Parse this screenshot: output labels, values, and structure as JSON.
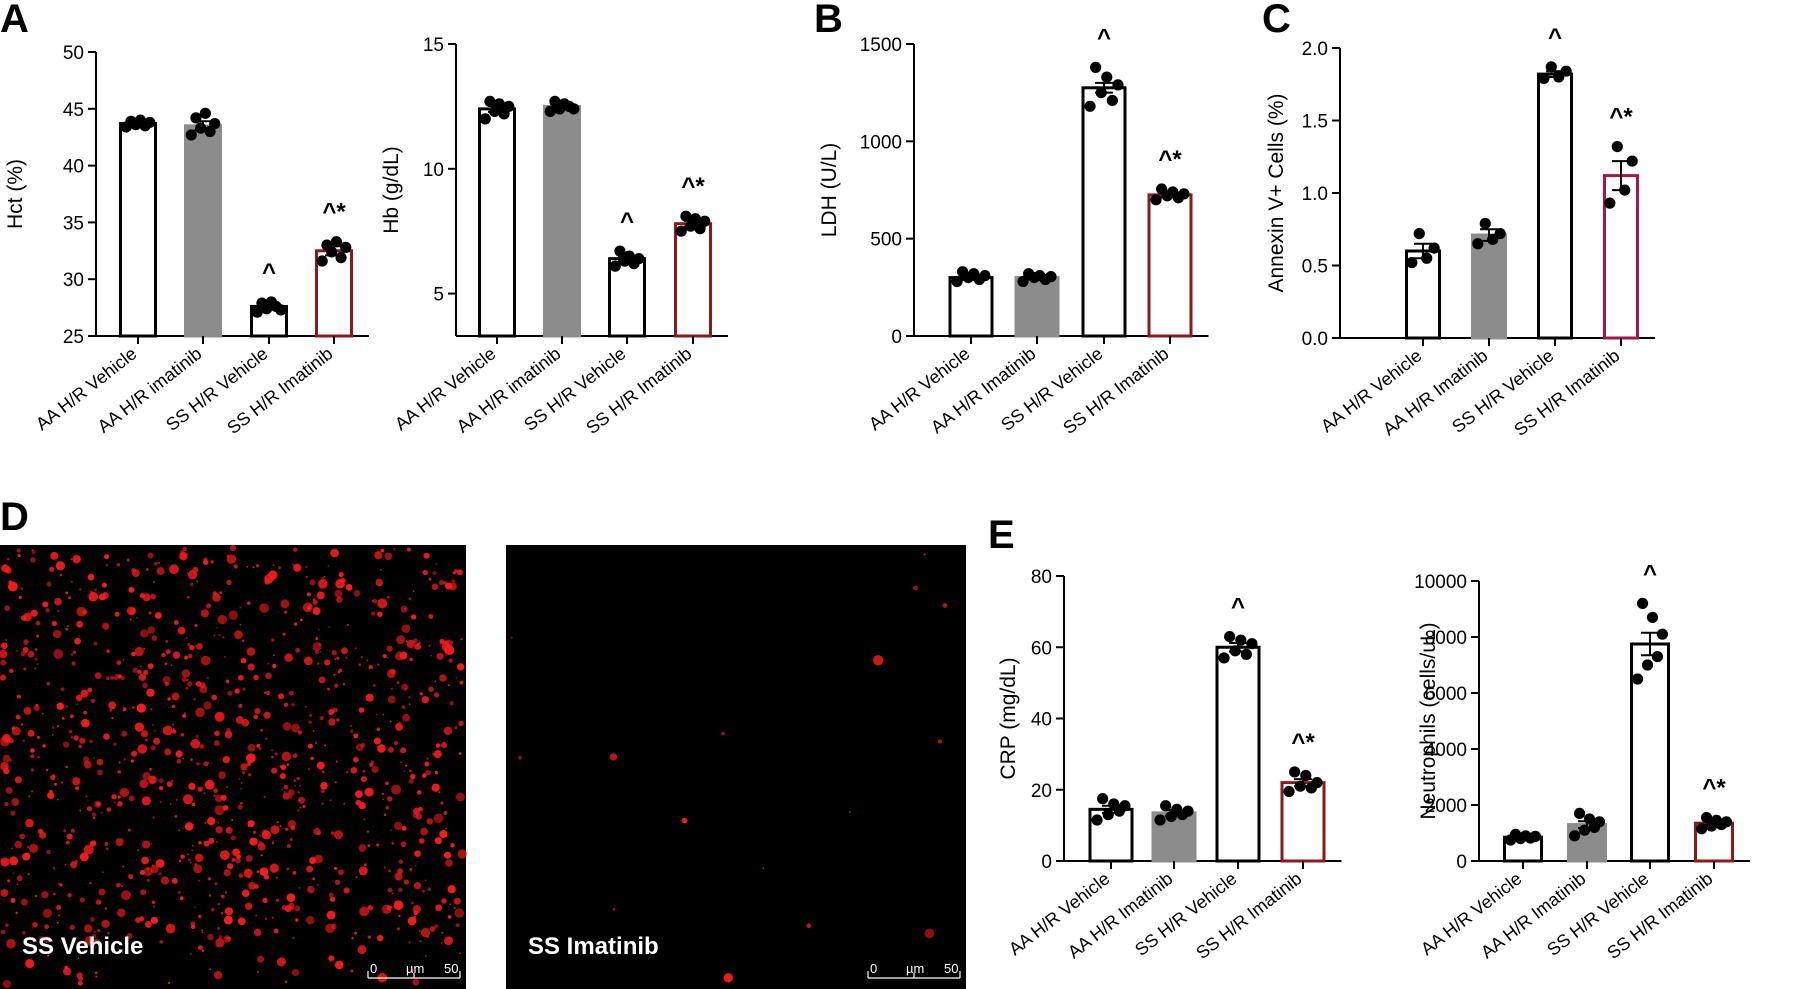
{
  "panel_letters": [
    "A",
    "B",
    "C",
    "D",
    "E"
  ],
  "chart_data": [
    {
      "panel": "A",
      "type": "bar",
      "ylabel": "Hct (%)",
      "ylim": [
        25,
        50
      ],
      "yticks": [
        25,
        30,
        35,
        40,
        45,
        50
      ],
      "categories": [
        "AA H/R Vehicle",
        "AA H/R imatinib",
        "SS H/R Vehicle",
        "SS H/R Imatinib"
      ],
      "values": [
        43.7,
        43.5,
        27.6,
        32.5
      ],
      "sem": [
        0.2,
        0.4,
        0.2,
        0.4
      ],
      "points": [
        [
          43.4,
          43.9,
          43.6,
          44.0,
          43.5,
          43.8
        ],
        [
          42.7,
          44.2,
          43.3,
          44.6,
          43.0,
          43.7
        ],
        [
          27.1,
          27.9,
          27.4,
          28.0,
          27.6,
          27.3
        ],
        [
          31.6,
          33.0,
          32.4,
          33.3,
          31.9,
          32.8
        ]
      ],
      "bar_fill": [
        "#ffffff",
        "#8c8c8c",
        "#ffffff",
        "#ffffff"
      ],
      "bar_edge": [
        "#000000",
        "#8c8c8c",
        "#000000",
        "#8b1a1a"
      ],
      "significance": [
        "",
        "",
        "^",
        "^*"
      ]
    },
    {
      "panel": "A",
      "type": "bar",
      "ylabel": "Hb (g/dL)",
      "ylim": [
        3.3,
        15
      ],
      "yticks": [
        5,
        10,
        15
      ],
      "categories": [
        "AA H/R Vehicle",
        "AA H/R imatinib",
        "SS H/R Vehicle",
        "SS H/R Imatinib"
      ],
      "values": [
        12.4,
        12.5,
        6.4,
        7.8
      ],
      "sem": [
        0.12,
        0.07,
        0.1,
        0.12
      ],
      "points": [
        [
          12.0,
          12.7,
          12.3,
          12.6,
          12.2,
          12.5
        ],
        [
          12.3,
          12.7,
          12.4,
          12.6,
          12.5,
          12.4
        ],
        [
          6.1,
          6.7,
          6.3,
          6.5,
          6.2,
          6.4
        ],
        [
          7.5,
          8.1,
          7.7,
          8.0,
          7.6,
          7.9
        ]
      ],
      "bar_fill": [
        "#ffffff",
        "#8c8c8c",
        "#ffffff",
        "#ffffff"
      ],
      "bar_edge": [
        "#000000",
        "#8c8c8c",
        "#000000",
        "#8b1a1a"
      ],
      "significance": [
        "",
        "",
        "^",
        "^*"
      ]
    },
    {
      "panel": "B",
      "type": "bar",
      "ylabel": "LDH (U/L)",
      "ylim": [
        0,
        1500
      ],
      "yticks": [
        0,
        500,
        1000,
        1500
      ],
      "categories": [
        "AA H/R Vehicle",
        "AA H/R Imatinib",
        "SS H/R Vehicle",
        "SS H/R Imatinib"
      ],
      "values": [
        300,
        300,
        1275,
        725
      ],
      "sem": [
        12,
        10,
        25,
        12
      ],
      "points": [
        [
          280,
          330,
          300,
          320,
          290,
          310
        ],
        [
          280,
          320,
          300,
          310,
          290,
          305
        ],
        [
          1180,
          1380,
          1250,
          1330,
          1210,
          1290
        ],
        [
          700,
          755,
          720,
          740,
          710,
          730
        ]
      ],
      "bar_fill": [
        "#ffffff",
        "#8c8c8c",
        "#ffffff",
        "#ffffff"
      ],
      "bar_edge": [
        "#000000",
        "#8c8c8c",
        "#000000",
        "#8b1a1a"
      ],
      "significance": [
        "",
        "",
        "^",
        "^*"
      ]
    },
    {
      "panel": "C",
      "type": "bar",
      "ylabel": "Annexin V+ Cells (%)",
      "ylim": [
        0,
        2.0
      ],
      "yticks": [
        "0.0",
        "0.5",
        "1.0",
        "1.5",
        "2.0"
      ],
      "categories": [
        "AA H/R Vehicle",
        "AA H/R Imatinib",
        "SS H/R Vehicle",
        "SS H/R Imatinib"
      ],
      "values": [
        0.6,
        0.71,
        1.82,
        1.12
      ],
      "sem": [
        0.05,
        0.04,
        0.02,
        0.1
      ],
      "points": [
        [
          0.52,
          0.72,
          0.55,
          0.62
        ],
        [
          0.65,
          0.79,
          0.68,
          0.72
        ],
        [
          1.79,
          1.87,
          1.8,
          1.84
        ],
        [
          0.93,
          1.32,
          1.02,
          1.22
        ]
      ],
      "bar_fill": [
        "#ffffff",
        "#8c8c8c",
        "#ffffff",
        "#ffffff"
      ],
      "bar_edge": [
        "#000000",
        "#8c8c8c",
        "#000000",
        "#a3174a"
      ],
      "significance": [
        "",
        "",
        "^",
        "^*"
      ]
    },
    {
      "panel": "E",
      "type": "bar",
      "ylabel": "CRP  (mg/dL)",
      "ylim": [
        0,
        80
      ],
      "yticks": [
        0,
        20,
        40,
        60,
        80
      ],
      "categories": [
        "AA H/R Vehicle",
        "AA H/R Imatinib",
        "SS H/R Vehicle",
        "SS H/R Imatinib"
      ],
      "values": [
        14.5,
        13.5,
        60,
        22
      ],
      "sem": [
        1,
        0.8,
        1.2,
        1
      ],
      "points": [
        [
          11.5,
          17.5,
          13.0,
          16.0,
          14.0,
          15.5
        ],
        [
          11.5,
          15.5,
          12.5,
          14.5,
          13.0,
          14.0
        ],
        [
          57,
          63,
          59,
          62,
          58,
          61
        ],
        [
          19.5,
          25,
          21,
          24,
          20.5,
          22
        ]
      ],
      "bar_fill": [
        "#ffffff",
        "#8c8c8c",
        "#ffffff",
        "#ffffff"
      ],
      "bar_edge": [
        "#000000",
        "#8c8c8c",
        "#000000",
        "#8b1a1a"
      ],
      "significance": [
        "",
        "",
        "^",
        "^*"
      ]
    },
    {
      "panel": "E",
      "type": "bar",
      "ylabel": "Neutrophils (cells/uL)",
      "ylim": [
        0,
        10000
      ],
      "yticks": [
        0,
        2000,
        4000,
        6000,
        8000,
        10000
      ],
      "categories": [
        "AA H/R Vehicle",
        "AA H/R Imatinib",
        "SS H/R Vehicle",
        "SS H/R Imatinib"
      ],
      "values": [
        850,
        1300,
        7750,
        1350
      ],
      "sem": [
        50,
        120,
        400,
        60
      ],
      "points": [
        [
          750,
          950,
          800,
          900,
          820,
          880
        ],
        [
          900,
          1700,
          1100,
          1500,
          1200,
          1400
        ],
        [
          6500,
          9200,
          7000,
          8700,
          7300,
          8100
        ],
        [
          1150,
          1550,
          1250,
          1450,
          1300,
          1400
        ]
      ],
      "bar_fill": [
        "#ffffff",
        "#8c8c8c",
        "#ffffff",
        "#ffffff"
      ],
      "bar_edge": [
        "#000000",
        "#8c8c8c",
        "#000000",
        "#8b1a1a"
      ],
      "significance": [
        "",
        "",
        "^",
        "^*"
      ]
    }
  ],
  "micrographs": [
    {
      "label": "SS Vehicle",
      "scale": {
        "start": "0",
        "unit": "µm",
        "end": "50"
      },
      "density": "high"
    },
    {
      "label": "SS  Imatinib",
      "scale": {
        "start": "0",
        "unit": "µm",
        "end": "50"
      },
      "density": "low"
    }
  ],
  "colors": {
    "bar_gray": "#8c8c8c",
    "vehicle_edge": "#000000",
    "imatinib_edge": "#8b1a1a",
    "annexin_imatinib_edge": "#a3174a",
    "droplet": "#ff1a1a"
  }
}
